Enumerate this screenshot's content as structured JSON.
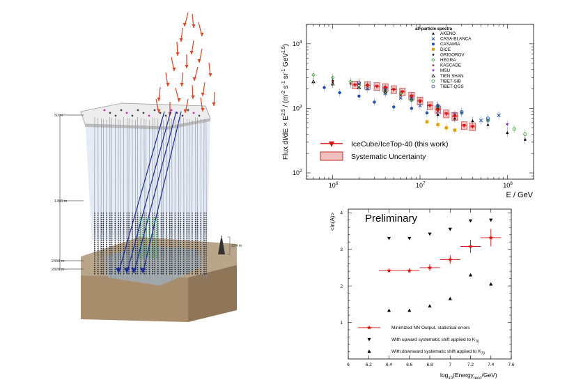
{
  "detector": {
    "depth_labels": [
      "50 m",
      "1450 m",
      "2450 m",
      "2820 m"
    ],
    "tower_label": "324 m"
  },
  "chart_data": [
    {
      "type": "scatter",
      "title": "",
      "xlabel": "E / GeV",
      "ylabel": "Flux dI/dE × E^2.5 / (m^-2 s^-1 sr^-1 GeV^1.5)",
      "x_scale": "log",
      "y_scale": "log",
      "xlim": [
        500000,
        200000000
      ],
      "ylim": [
        80,
        20000
      ],
      "x_ticks": [
        {
          "value": 1000000,
          "base": "10",
          "exp": "6"
        },
        {
          "value": 10000000,
          "base": "10",
          "exp": "7"
        },
        {
          "value": 100000000,
          "base": "10",
          "exp": "8"
        }
      ],
      "y_ticks": [
        {
          "value": 100,
          "base": "10",
          "exp": "2"
        },
        {
          "value": 1000,
          "base": "10",
          "exp": "3"
        },
        {
          "value": 10000,
          "base": "10",
          "exp": "4"
        }
      ],
      "legend_title": "all-particle spectra",
      "legend_placement": "top-right",
      "series": [
        {
          "name": "AKENO",
          "marker": "triangle",
          "color": "#000000",
          "points": [
            [
              16000000.0,
              800
            ],
            [
              25000000.0,
              700
            ],
            [
              40000000.0,
              640
            ],
            [
              60000000.0,
              560
            ],
            [
              100000000.0,
              420
            ],
            [
              160000000.0,
              330
            ]
          ]
        },
        {
          "name": "CASA-BLANCA",
          "marker": "cross",
          "color": "#1f4fb4",
          "points": [
            [
              2500000.0,
              2000
            ],
            [
              4000000.0,
              1700
            ],
            [
              6000000.0,
              1450
            ],
            [
              10000000.0,
              1100
            ],
            [
              16000000.0,
              900
            ],
            [
              25000000.0,
              800
            ],
            [
              50000000.0,
              650
            ],
            [
              80000000.0,
              780
            ]
          ]
        },
        {
          "name": "CASAMIA",
          "marker": "circle",
          "color": "#1f4fb4",
          "points": [
            [
              800000.0,
              2100
            ],
            [
              1200000.0,
              1750
            ],
            [
              2000000.0,
              1550
            ],
            [
              3000000.0,
              1250
            ],
            [
              5000000.0,
              1050
            ],
            [
              8000000.0,
              1000
            ],
            [
              12000000.0,
              850
            ]
          ]
        },
        {
          "name": "DICE",
          "marker": "square",
          "color": "#e0a000",
          "points": [
            [
              12000000.0,
              620
            ],
            [
              16000000.0,
              560
            ],
            [
              20000000.0,
              500
            ],
            [
              25000000.0,
              460
            ]
          ]
        },
        {
          "name": "GRIGOROV",
          "marker": "star",
          "color": "#000000",
          "points": [
            [
              1000000.0,
              2700
            ],
            [
              2000000.0,
              2400
            ],
            [
              4000000.0,
              2000
            ],
            [
              8000000.0,
              1500
            ]
          ]
        },
        {
          "name": "HEGRA",
          "marker": "diamond",
          "color": "#2aa02a",
          "points": [
            [
              600000.0,
              3300
            ],
            [
              1000000.0,
              3000
            ],
            [
              1600000.0,
              2600
            ],
            [
              2500000.0,
              2300
            ],
            [
              4000000.0,
              2000
            ],
            [
              6000000.0,
              1700
            ],
            [
              10000000.0,
              1300
            ]
          ]
        },
        {
          "name": "KASCADE",
          "marker": "star",
          "color": "#8b1a1a",
          "points": [
            [
              1000000.0,
              2600
            ],
            [
              1600000.0,
              2400
            ],
            [
              2500000.0,
              2200
            ],
            [
              4000000.0,
              1900
            ],
            [
              6000000.0,
              1600
            ],
            [
              10000000.0,
              1250
            ],
            [
              16000000.0,
              1000
            ],
            [
              25000000.0,
              800
            ]
          ]
        },
        {
          "name": "MSU",
          "marker": "triangle-down",
          "color": "#8a2be2",
          "points": [
            [
              2000000.0,
              2400
            ],
            [
              4000000.0,
              2000
            ],
            [
              8000000.0,
              1550
            ],
            [
              16000000.0,
              1100
            ],
            [
              30000000.0,
              850
            ],
            [
              60000000.0,
              640
            ],
            [
              100000000.0,
              560
            ]
          ]
        },
        {
          "name": "TIEN SHAN",
          "marker": "open-triangle",
          "color": "#000000",
          "points": [
            [
              600000.0,
              2600
            ],
            [
              1000000.0,
              2400
            ],
            [
              2000000.0,
              2100
            ],
            [
              4000000.0,
              1800
            ],
            [
              8000000.0,
              1400
            ],
            [
              16000000.0,
              1050
            ]
          ]
        },
        {
          "name": "TIBET-SIB",
          "marker": "open-circle",
          "color": "#2aa02a",
          "points": [
            [
              2000000.0,
              2300
            ],
            [
              4000000.0,
              1900
            ],
            [
              8000000.0,
              1350
            ],
            [
              16000000.0,
              1000
            ],
            [
              30000000.0,
              850
            ],
            [
              60000000.0,
              650
            ],
            [
              120000000.0,
              480
            ],
            [
              160000000.0,
              400
            ]
          ]
        },
        {
          "name": "TIBET-QGS",
          "marker": "open-circle",
          "color": "#1f4fb4",
          "points": [
            [
              2000000.0,
              2500
            ],
            [
              4000000.0,
              2050
            ],
            [
              8000000.0,
              1450
            ],
            [
              16000000.0,
              1100
            ],
            [
              30000000.0,
              880
            ],
            [
              60000000.0,
              700
            ]
          ]
        }
      ],
      "highlight_series": {
        "name": "IceCube/IceTop-40 (this work)",
        "color": "#d11",
        "points": [
          [
            1800000.0,
            2300
          ],
          [
            2500000.0,
            2260
          ],
          [
            3200000.0,
            2180
          ],
          [
            4000000.0,
            2100
          ],
          [
            5000000.0,
            1950
          ],
          [
            6300000.0,
            1800
          ],
          [
            8000000.0,
            1550
          ],
          [
            10000000.0,
            1300
          ],
          [
            13000000.0,
            1100
          ],
          [
            16000000.0,
            950
          ],
          [
            20000000.0,
            820
          ],
          [
            25000000.0,
            750
          ],
          [
            32000000.0,
            540
          ],
          [
            40000000.0,
            520
          ]
        ]
      },
      "band_label": "Systematic Uncertainty"
    },
    {
      "type": "scatter",
      "title": "Preliminary",
      "xlabel": "log10(Energy_reco/GeV)",
      "ylabel": "<ln(A)>",
      "xlim": [
        6,
        7.6
      ],
      "ylim": [
        0,
        4.1
      ],
      "x_ticks": [
        "6",
        "6.2",
        "6.4",
        "6.6",
        "6.8",
        "7",
        "7.2",
        "7.4",
        "7.6"
      ],
      "y_ticks": [
        "1",
        "2",
        "3",
        "4"
      ],
      "series": [
        {
          "name": "Minimized NN Output, statistical errors",
          "marker": "star",
          "color": "#d11",
          "points": [
            [
              6.4,
              2.42
            ],
            [
              6.6,
              2.42
            ],
            [
              6.8,
              2.5
            ],
            [
              7.0,
              2.72
            ],
            [
              7.2,
              3.08
            ],
            [
              7.4,
              3.32
            ]
          ],
          "yerr": [
            0.05,
            0.06,
            0.09,
            0.12,
            0.18,
            0.24
          ],
          "xerr": 0.1
        },
        {
          "name": "With upward systematic shift applied to K70",
          "marker": "triangle-down",
          "color": "#000000",
          "points": [
            [
              6.4,
              3.3
            ],
            [
              6.6,
              3.3
            ],
            [
              6.8,
              3.42
            ],
            [
              7.0,
              3.55
            ],
            [
              7.2,
              3.78
            ],
            [
              7.4,
              3.8
            ]
          ]
        },
        {
          "name": "With downward systematic shift applied to K70",
          "marker": "triangle",
          "color": "#000000",
          "points": [
            [
              6.4,
              1.33
            ],
            [
              6.6,
              1.33
            ],
            [
              6.8,
              1.45
            ],
            [
              7.0,
              1.65
            ],
            [
              7.2,
              2.3
            ],
            [
              7.4,
              2.05
            ]
          ]
        }
      ],
      "legend": [
        {
          "text": "Minimized NN Output, statistical errors",
          "sub": ""
        },
        {
          "text": "With upward systematic shift applied to K",
          "sub": "70"
        },
        {
          "text": "With downward systematic shift applied to K",
          "sub": "70"
        }
      ]
    }
  ]
}
